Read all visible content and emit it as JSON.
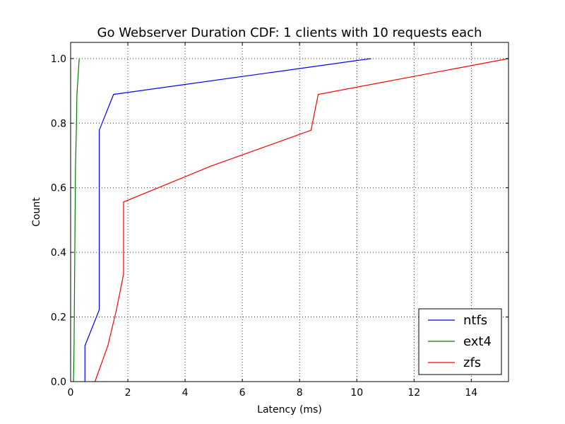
{
  "chart_data": {
    "type": "line",
    "title": "Go Webserver Duration CDF: 1 clients with 10 requests each",
    "xlabel": "Latency (ms)",
    "ylabel": "Count",
    "xlim": [
      0,
      15.3
    ],
    "ylim": [
      0,
      1.05
    ],
    "xticks": [
      0,
      2,
      4,
      6,
      8,
      10,
      12,
      14
    ],
    "yticks": [
      0.0,
      0.2,
      0.4,
      0.6,
      0.8,
      1.0
    ],
    "xtick_labels": [
      "0",
      "2",
      "4",
      "6",
      "8",
      "10",
      "12",
      "14"
    ],
    "ytick_labels": [
      "0.0",
      "0.2",
      "0.4",
      "0.6",
      "0.8",
      "1.0"
    ],
    "grid": true,
    "legend_position": "bottom-right",
    "series": [
      {
        "name": "ntfs",
        "color": "#0000ff",
        "x": [
          0.5,
          0.5,
          1.0,
          1.0,
          1.0,
          1.0,
          1.0,
          1.0,
          1.5,
          10.5
        ],
        "y": [
          0.0,
          0.111,
          0.222,
          0.333,
          0.444,
          0.556,
          0.667,
          0.778,
          0.889,
          1.0
        ]
      },
      {
        "name": "ext4",
        "color": "#008000",
        "x": [
          0.1,
          0.12,
          0.13,
          0.14,
          0.15,
          0.16,
          0.17,
          0.2,
          0.22,
          0.3
        ],
        "y": [
          0.0,
          0.111,
          0.222,
          0.333,
          0.444,
          0.556,
          0.667,
          0.778,
          0.889,
          1.0
        ]
      },
      {
        "name": "zfs",
        "color": "#ff0000",
        "x": [
          0.85,
          1.3,
          1.6,
          1.85,
          1.85,
          1.85,
          4.9,
          8.4,
          8.65,
          15.3
        ],
        "y": [
          0.0,
          0.111,
          0.222,
          0.333,
          0.444,
          0.556,
          0.667,
          0.778,
          0.889,
          1.0
        ]
      }
    ]
  }
}
